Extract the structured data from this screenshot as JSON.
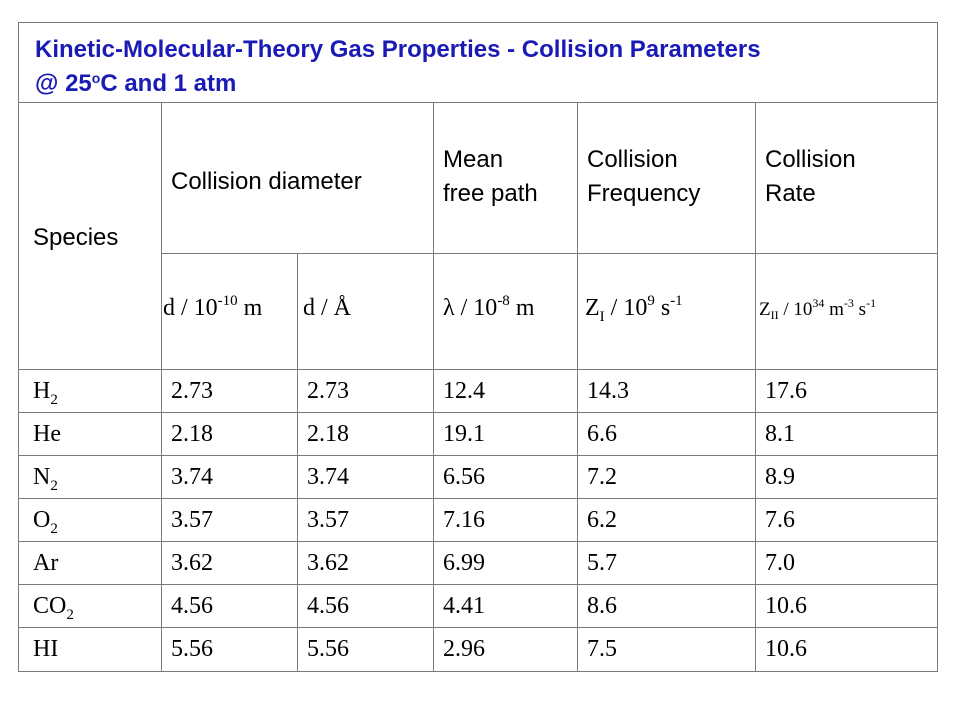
{
  "title": {
    "line1": "Kinetic-Molecular-Theory Gas Properties - Collision Parameters",
    "line2_prefix": "@ 25",
    "line2_sup": "o",
    "line2_suffix": "C and 1 atm"
  },
  "headers": {
    "species": "Species",
    "collision_diameter": "Collision diameter",
    "mean_free_path_l1": "Mean",
    "mean_free_path_l2": "free path",
    "collision_frequency_l1": "Collision",
    "collision_frequency_l2": "Frequency",
    "collision_rate_l1": "Collision",
    "collision_rate_l2": "Rate"
  },
  "units": {
    "d_m": {
      "base": "d / 10",
      "sup": "-10",
      "tail": " m"
    },
    "d_A": "d / Å",
    "lambda": {
      "base": "λ / 10",
      "sup": "-8",
      "tail": " m"
    },
    "z1": {
      "sym": "Z",
      "sub": "I",
      "mid": " / 10",
      "sup": "9",
      "tail": " s",
      "sup2": "-1"
    },
    "z2": {
      "sym": "Z",
      "sub": "II",
      "mid": " / 10",
      "sup": "34",
      "tail": " m",
      "sup2": "-3",
      "tail2": " s",
      "sup3": "-1"
    }
  },
  "rows": [
    {
      "species": "H",
      "sub": "2",
      "d_m": "2.73",
      "d_A": "2.73",
      "lambda": "12.4",
      "z1": "14.3",
      "z2": "17.6"
    },
    {
      "species": "He",
      "sub": "",
      "d_m": "2.18",
      "d_A": "2.18",
      "lambda": "19.1",
      "z1": "6.6",
      "z2": "8.1"
    },
    {
      "species": "N",
      "sub": "2",
      "d_m": "3.74",
      "d_A": "3.74",
      "lambda": "6.56",
      "z1": "7.2",
      "z2": "8.9"
    },
    {
      "species": "O",
      "sub": "2",
      "d_m": "3.57",
      "d_A": "3.57",
      "lambda": "7.16",
      "z1": "6.2",
      "z2": "7.6"
    },
    {
      "species": "Ar",
      "sub": "",
      "d_m": "3.62",
      "d_A": "3.62",
      "lambda": "6.99",
      "z1": "5.7",
      "z2": "7.0"
    },
    {
      "species": "CO",
      "sub": "2",
      "d_m": "4.56",
      "d_A": "4.56",
      "lambda": "4.41",
      "z1": "8.6",
      "z2": "10.6"
    },
    {
      "species": "HI",
      "sub": "",
      "d_m": "5.56",
      "d_A": "5.56",
      "lambda": "2.96",
      "z1": "7.5",
      "z2": "10.6"
    }
  ],
  "colors": {
    "title": "#1a1ab5",
    "border": "#7a7a7a"
  }
}
